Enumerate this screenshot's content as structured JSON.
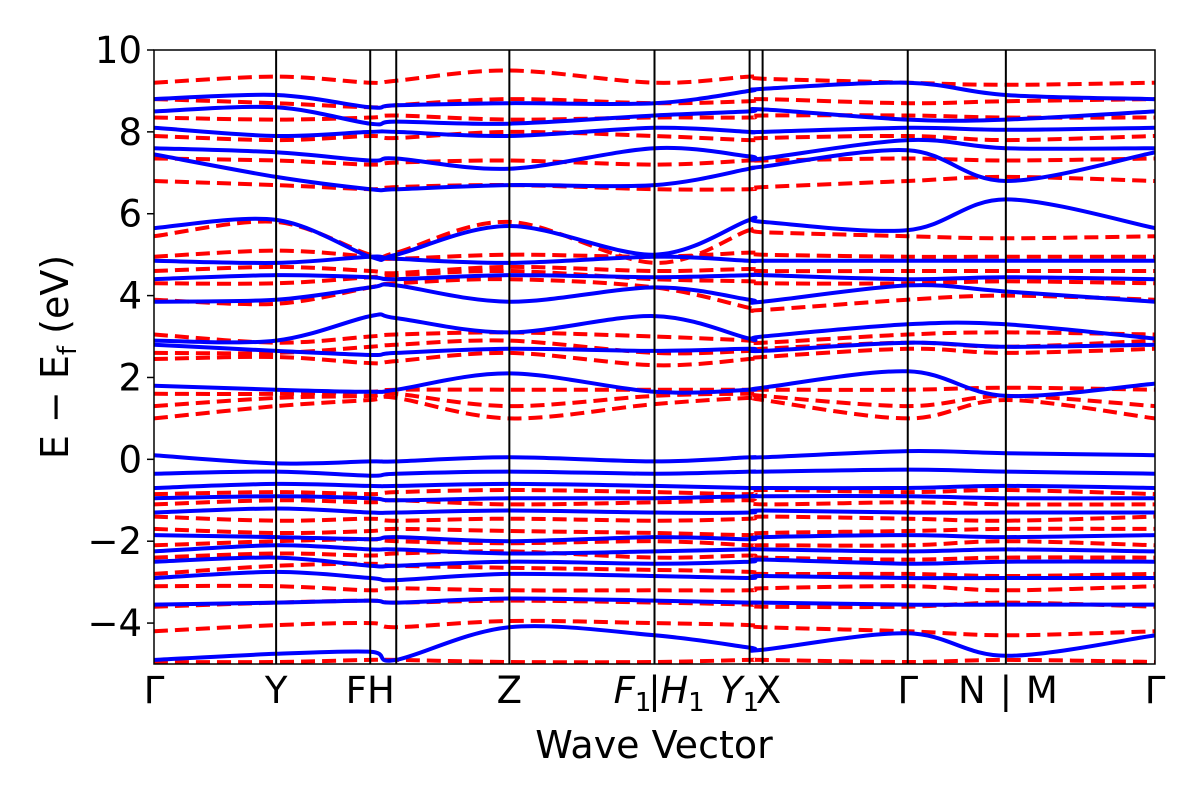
{
  "chart_data": {
    "type": "line",
    "title": "",
    "xlabel": "Wave Vector",
    "ylabel": "E − E",
    "ylabel_sub": "f",
    "ylabel_unit": "(eV)",
    "ylim": [
      -5,
      10
    ],
    "xlim": [
      0,
      100
    ],
    "grid": false,
    "yticks": [
      -4,
      -2,
      0,
      2,
      4,
      6,
      8,
      10
    ],
    "ytick_labels": [
      "−4",
      "−2",
      "0",
      "2",
      "4",
      "6",
      "8",
      "10"
    ],
    "kpoints": [
      {
        "x": 0,
        "label": "Γ",
        "sub": ""
      },
      {
        "x": 12.2,
        "label": "Y",
        "sub": ""
      },
      {
        "x": 21.6,
        "label": "FH",
        "sub": ""
      },
      {
        "x": 35.5,
        "label": "Z",
        "sub": ""
      },
      {
        "x": 50.0,
        "label": "F",
        "sub": "1"
      },
      {
        "x": 50.0,
        "label": "|",
        "sub": ""
      },
      {
        "x": 50.0,
        "label": "H",
        "sub": "1"
      },
      {
        "x": 59.5,
        "label": "Y",
        "sub": "1"
      },
      {
        "x": 60.8,
        "label": "X",
        "sub": ""
      },
      {
        "x": 75.3,
        "label": "Γ",
        "sub": ""
      },
      {
        "x": 85.1,
        "label": "N",
        "sub": ""
      },
      {
        "x": 85.1,
        "label": "|",
        "sub": ""
      },
      {
        "x": 85.1,
        "label": "M",
        "sub": ""
      },
      {
        "x": 100,
        "label": "Γ",
        "sub": ""
      }
    ],
    "vlines": [
      12.2,
      21.6,
      24.2,
      35.5,
      50.0,
      59.5,
      60.8,
      75.3,
      85.1
    ],
    "series": [
      {
        "style": "dashed",
        "color": "#ff0000",
        "x": [
          0,
          12.2,
          21.6,
          24.2,
          35.5,
          50.0,
          59.5,
          60.8,
          75.3,
          85.1,
          100
        ],
        "bands": [
          [
            -4.95,
            -4.95,
            -4.9,
            -4.9,
            -4.95,
            -4.95,
            -4.9,
            -4.9,
            -4.95,
            -4.9,
            -4.95
          ],
          [
            -4.2,
            -4.05,
            -4.0,
            -4.1,
            -3.95,
            -4.0,
            -4.05,
            -4.1,
            -4.2,
            -4.3,
            -4.2
          ],
          [
            -3.6,
            -3.5,
            -3.45,
            -3.5,
            -3.45,
            -3.5,
            -3.55,
            -3.6,
            -3.6,
            -3.5,
            -3.6
          ],
          [
            -3.1,
            -3.1,
            -3.2,
            -3.15,
            -3.2,
            -3.2,
            -3.2,
            -3.15,
            -3.1,
            -3.2,
            -3.1
          ],
          [
            -2.8,
            -2.6,
            -2.55,
            -2.6,
            -2.65,
            -2.7,
            -2.75,
            -2.8,
            -2.8,
            -2.85,
            -2.8
          ],
          [
            -2.4,
            -2.3,
            -2.35,
            -2.3,
            -2.25,
            -2.4,
            -2.35,
            -2.4,
            -2.45,
            -2.4,
            -2.4
          ],
          [
            -2.1,
            -2.0,
            -1.95,
            -2.0,
            -2.05,
            -2.0,
            -2.1,
            -2.1,
            -2.1,
            -2.0,
            -2.1
          ],
          [
            -1.7,
            -1.8,
            -1.75,
            -1.7,
            -1.75,
            -1.8,
            -1.85,
            -1.8,
            -1.75,
            -1.7,
            -1.7
          ],
          [
            -1.4,
            -1.5,
            -1.45,
            -1.5,
            -1.45,
            -1.5,
            -1.45,
            -1.4,
            -1.45,
            -1.5,
            -1.4
          ],
          [
            -1.1,
            -1.0,
            -1.05,
            -1.0,
            -1.1,
            -1.05,
            -1.0,
            -1.1,
            -1.05,
            -1.1,
            -1.1
          ],
          [
            -0.85,
            -0.8,
            -0.85,
            -0.8,
            -0.75,
            -0.8,
            -0.85,
            -0.75,
            -0.8,
            -0.75,
            -0.85
          ],
          [
            1.0,
            1.3,
            1.45,
            1.5,
            1.0,
            1.35,
            1.5,
            1.45,
            1.0,
            1.45,
            1.0
          ],
          [
            1.3,
            1.5,
            1.55,
            1.6,
            1.3,
            1.55,
            1.6,
            1.55,
            1.3,
            1.55,
            1.3
          ],
          [
            1.6,
            1.6,
            1.65,
            1.7,
            1.7,
            1.7,
            1.7,
            1.7,
            1.7,
            1.75,
            1.7
          ],
          [
            2.45,
            2.5,
            2.35,
            2.4,
            2.6,
            2.3,
            2.45,
            2.5,
            2.7,
            2.6,
            2.7
          ],
          [
            2.6,
            2.6,
            2.75,
            2.8,
            2.9,
            2.6,
            2.65,
            2.7,
            2.85,
            2.75,
            2.9
          ],
          [
            3.05,
            2.85,
            3.0,
            3.05,
            3.1,
            3.0,
            2.9,
            2.85,
            3.05,
            3.1,
            3.05
          ],
          [
            3.9,
            3.8,
            4.2,
            4.3,
            4.4,
            4.2,
            3.7,
            3.65,
            3.9,
            4.0,
            3.9
          ],
          [
            4.3,
            4.3,
            4.45,
            4.5,
            4.6,
            4.4,
            4.35,
            4.3,
            4.3,
            4.35,
            4.3
          ],
          [
            4.6,
            4.7,
            4.6,
            4.55,
            4.7,
            4.6,
            4.65,
            4.6,
            4.6,
            4.6,
            4.6
          ],
          [
            4.95,
            5.1,
            4.95,
            4.9,
            5.0,
            4.95,
            5.05,
            5.0,
            4.95,
            4.95,
            4.95
          ],
          [
            5.45,
            5.8,
            5.0,
            5.05,
            5.8,
            4.8,
            5.6,
            5.55,
            5.45,
            5.4,
            5.45
          ],
          [
            6.8,
            6.7,
            6.6,
            6.65,
            6.7,
            6.6,
            6.6,
            6.65,
            6.8,
            6.9,
            6.8
          ],
          [
            7.35,
            7.3,
            7.2,
            7.25,
            7.3,
            7.2,
            7.3,
            7.3,
            7.35,
            7.3,
            7.35
          ],
          [
            7.9,
            7.8,
            7.9,
            7.85,
            8.0,
            7.9,
            7.8,
            7.85,
            7.9,
            7.8,
            7.9
          ],
          [
            8.35,
            8.3,
            8.35,
            8.4,
            8.3,
            8.35,
            8.35,
            8.4,
            8.4,
            8.35,
            8.35
          ],
          [
            8.8,
            8.7,
            8.6,
            8.65,
            8.8,
            8.7,
            8.75,
            8.8,
            8.7,
            8.75,
            8.8
          ],
          [
            9.2,
            9.35,
            9.2,
            9.25,
            9.5,
            9.2,
            9.35,
            9.3,
            9.2,
            9.15,
            9.2
          ]
        ]
      },
      {
        "style": "solid",
        "color": "#0000ff",
        "x": [
          0,
          12.2,
          21.6,
          24.2,
          35.5,
          50.0,
          59.5,
          60.8,
          75.3,
          85.1,
          100
        ],
        "bands": [
          [
            -4.9,
            -4.75,
            -4.7,
            -4.9,
            -4.1,
            -4.3,
            -4.6,
            -4.65,
            -4.25,
            -4.8,
            -4.3
          ],
          [
            -3.55,
            -3.5,
            -3.45,
            -3.5,
            -3.4,
            -3.45,
            -3.5,
            -3.5,
            -3.55,
            -3.55,
            -3.55
          ],
          [
            -2.9,
            -2.75,
            -2.9,
            -2.95,
            -2.8,
            -2.85,
            -2.9,
            -2.85,
            -2.9,
            -2.9,
            -2.9
          ],
          [
            -2.5,
            -2.4,
            -2.6,
            -2.6,
            -2.5,
            -2.55,
            -2.5,
            -2.45,
            -2.55,
            -2.5,
            -2.5
          ],
          [
            -2.25,
            -2.1,
            -2.2,
            -2.2,
            -2.3,
            -2.25,
            -2.2,
            -2.2,
            -2.25,
            -2.2,
            -2.25
          ],
          [
            -1.85,
            -1.9,
            -1.95,
            -1.9,
            -2.0,
            -1.9,
            -1.95,
            -1.9,
            -1.85,
            -1.9,
            -1.85
          ],
          [
            -1.3,
            -1.2,
            -1.3,
            -1.3,
            -1.25,
            -1.3,
            -1.3,
            -1.25,
            -1.3,
            -1.3,
            -1.3
          ],
          [
            -0.95,
            -0.9,
            -0.95,
            -1.0,
            -0.95,
            -0.95,
            -0.9,
            -0.9,
            -0.9,
            -0.95,
            -0.95
          ],
          [
            -0.7,
            -0.6,
            -0.65,
            -0.65,
            -0.6,
            -0.65,
            -0.7,
            -0.7,
            -0.7,
            -0.65,
            -0.7
          ],
          [
            -0.35,
            -0.3,
            -0.4,
            -0.35,
            -0.3,
            -0.35,
            -0.3,
            -0.3,
            -0.25,
            -0.3,
            -0.35
          ],
          [
            0.1,
            -0.1,
            -0.05,
            -0.05,
            0.05,
            -0.05,
            0.05,
            0.05,
            0.2,
            0.15,
            0.1
          ],
          [
            1.8,
            1.7,
            1.65,
            1.7,
            2.1,
            1.65,
            1.7,
            1.75,
            2.15,
            1.55,
            1.85
          ],
          [
            2.8,
            2.65,
            2.55,
            2.6,
            2.7,
            2.65,
            2.7,
            2.65,
            2.85,
            2.75,
            2.8
          ],
          [
            2.9,
            2.9,
            3.5,
            3.45,
            3.1,
            3.5,
            2.95,
            3.0,
            3.3,
            3.3,
            2.95
          ],
          [
            3.85,
            3.9,
            4.2,
            4.25,
            3.85,
            4.2,
            3.9,
            3.85,
            4.25,
            4.1,
            3.85
          ],
          [
            4.4,
            4.5,
            4.45,
            4.4,
            4.5,
            4.45,
            4.5,
            4.5,
            4.4,
            4.45,
            4.4
          ],
          [
            4.85,
            4.8,
            4.95,
            4.9,
            4.8,
            4.95,
            4.85,
            4.85,
            4.85,
            4.85,
            4.85
          ],
          [
            5.65,
            5.85,
            4.95,
            5.0,
            5.7,
            5.0,
            5.85,
            5.8,
            5.6,
            6.35,
            5.65
          ],
          [
            7.45,
            6.9,
            6.6,
            6.6,
            6.7,
            6.7,
            7.1,
            7.15,
            7.55,
            6.8,
            7.5
          ],
          [
            7.6,
            7.5,
            7.3,
            7.35,
            7.1,
            7.6,
            7.4,
            7.35,
            7.8,
            7.6,
            7.6
          ],
          [
            8.1,
            7.9,
            8.0,
            8.0,
            7.9,
            8.1,
            8.0,
            8.0,
            8.1,
            8.05,
            8.1
          ],
          [
            8.5,
            8.6,
            8.2,
            8.25,
            8.2,
            8.4,
            8.5,
            8.55,
            8.3,
            8.3,
            8.5
          ],
          [
            8.8,
            8.9,
            8.6,
            8.65,
            8.7,
            8.7,
            9.0,
            9.05,
            9.2,
            8.9,
            8.8
          ]
        ]
      }
    ]
  }
}
